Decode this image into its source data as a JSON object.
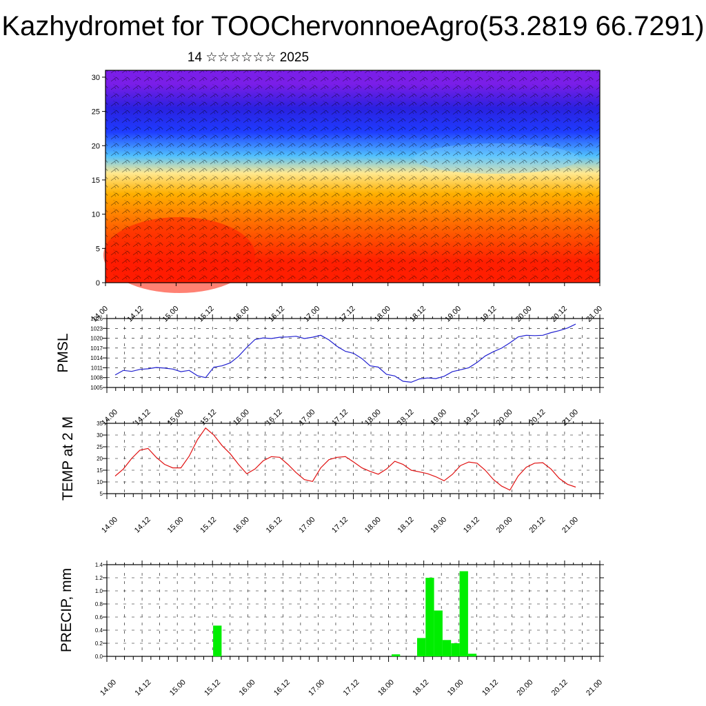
{
  "title": "Kazhydromet for TOOChervonnoeAgro(53.2819 66.7291)",
  "subtitle": "14 ☆☆☆☆☆☆ 2025",
  "time_labels": [
    "14.00",
    "14.12",
    "15.00",
    "15.12",
    "16.00",
    "16.12",
    "17.00",
    "17.12",
    "18.00",
    "18.12",
    "19.00",
    "19.12",
    "20.00",
    "20.12",
    "21.00"
  ],
  "colors": {
    "pmsl": "#1f1fd0",
    "temp": "#e01010",
    "precip": "#00ee00",
    "frame": "#000000"
  },
  "chart_data": [
    {
      "type": "heatmap",
      "title": "",
      "ylim": [
        0,
        31
      ],
      "yticks": [
        "0",
        "5",
        "10",
        "15",
        "20",
        "25",
        "30"
      ],
      "x": [
        "14.00",
        "14.12",
        "15.00",
        "15.12",
        "16.00",
        "16.12",
        "17.00",
        "17.12",
        "18.00",
        "18.12",
        "19.00",
        "19.12",
        "20.00",
        "20.12",
        "21.00"
      ],
      "color_bands": [
        {
          "from": 0,
          "to": 6,
          "color": "#ff1e00"
        },
        {
          "from": 6,
          "to": 11,
          "color": "#ff6a00"
        },
        {
          "from": 11,
          "to": 15,
          "color": "#ffb000"
        },
        {
          "from": 15,
          "to": 17,
          "color": "#ffe890"
        },
        {
          "from": 17,
          "to": 20,
          "color": "#50c0ff"
        },
        {
          "from": 20,
          "to": 24,
          "color": "#1e3cff"
        },
        {
          "from": 24,
          "to": 27,
          "color": "#2a20e0"
        },
        {
          "from": 27,
          "to": 31,
          "color": "#7a1ee8"
        }
      ],
      "wind_barbs": true
    },
    {
      "type": "line",
      "ylabel": "PMSL",
      "ylim": [
        1005,
        1026
      ],
      "yticks": [
        "1005",
        "1008",
        "1011",
        "1014",
        "1017",
        "1020",
        "1023",
        "1026"
      ],
      "series": [
        {
          "values": [
            1008.8,
            1010.2,
            1009.9,
            1010.5,
            1010.7,
            1011.1,
            1010.9,
            1010.6,
            1009.8,
            1010.2,
            1008.6,
            1008.0,
            1011.2,
            1011.6,
            1012.5,
            1014.5,
            1017.2,
            1019.6,
            1020.1,
            1019.9,
            1020.3,
            1020.4,
            1020.6,
            1019.9,
            1020.3,
            1020.9,
            1019.5,
            1017.5,
            1016.0,
            1015.4,
            1013.8,
            1011.6,
            1011.2,
            1009.0,
            1008.5,
            1006.9,
            1006.6,
            1007.6,
            1007.9,
            1007.7,
            1008.4,
            1009.8,
            1010.4,
            1011.0,
            1012.6,
            1014.6,
            1015.9,
            1017.0,
            1018.6,
            1020.4,
            1020.9,
            1020.8,
            1020.9,
            1021.7,
            1022.3,
            1023.1,
            1024.3
          ]
        }
      ]
    },
    {
      "type": "line",
      "ylabel": "TEMP at 2 M",
      "ylim": [
        5,
        35
      ],
      "yticks": [
        "5",
        "10",
        "15",
        "20",
        "25",
        "30",
        "35"
      ],
      "series": [
        {
          "values": [
            12.5,
            15.5,
            20.0,
            23.5,
            24.3,
            20.5,
            17.5,
            16.0,
            16.0,
            21.0,
            28.0,
            33.0,
            30.0,
            25.5,
            22.0,
            17.5,
            13.5,
            15.5,
            19.0,
            20.8,
            20.5,
            17.5,
            14.0,
            11.0,
            10.2,
            16.0,
            19.5,
            20.5,
            20.8,
            18.5,
            16.0,
            14.5,
            13.3,
            15.5,
            18.8,
            17.5,
            15.0,
            14.3,
            13.5,
            12.2,
            10.5,
            13.2,
            17.0,
            18.5,
            18.0,
            15.0,
            11.0,
            8.2,
            6.5,
            12.5,
            16.3,
            18.0,
            18.2,
            15.5,
            11.5,
            9.0,
            7.8
          ]
        }
      ]
    },
    {
      "type": "bar",
      "ylabel": "PRECIP, mm",
      "ylim": [
        0,
        1.4
      ],
      "yticks": [
        "0.0",
        "0.2",
        "0.4",
        "0.6",
        "0.8",
        "1.0",
        "1.2",
        "1.4"
      ],
      "values": [
        0,
        0,
        0,
        0,
        0,
        0,
        0,
        0,
        0,
        0,
        0,
        0,
        0.47,
        0,
        0,
        0,
        0,
        0,
        0,
        0,
        0,
        0,
        0,
        0,
        0,
        0,
        0,
        0,
        0,
        0,
        0,
        0,
        0,
        0.03,
        0,
        0,
        0.28,
        1.2,
        0.7,
        0.25,
        0.2,
        1.3,
        0.04,
        0,
        0,
        0,
        0,
        0,
        0,
        0,
        0,
        0,
        0,
        0,
        0,
        0,
        0
      ]
    }
  ]
}
